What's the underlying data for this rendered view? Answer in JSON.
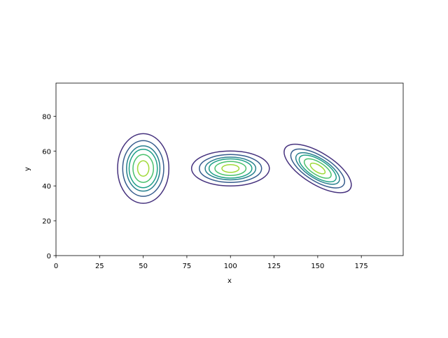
{
  "chart_data": {
    "type": "contour",
    "xlabel": "x",
    "ylabel": "y",
    "xlim": [
      0,
      199
    ],
    "ylim": [
      0,
      99
    ],
    "xticks": [
      0,
      25,
      50,
      75,
      100,
      125,
      150,
      175
    ],
    "yticks": [
      0,
      20,
      40,
      60,
      80
    ],
    "level_colors": [
      "#46327e",
      "#365c8d",
      "#277f8e",
      "#1fa187",
      "#4ac16d",
      "#a0da39"
    ],
    "level_scales": [
      1,
      0.8,
      0.65,
      0.55,
      0.4,
      0.22
    ],
    "blobs": [
      {
        "cx": 50,
        "cy": 50,
        "rx": 14.7,
        "ry": 20,
        "angle": 0
      },
      {
        "cx": 100,
        "cy": 50,
        "rx": 22.3,
        "ry": 10,
        "angle": 0
      },
      {
        "cx": 150,
        "cy": 50,
        "rx": 22,
        "ry": 9,
        "angle": -32
      }
    ]
  }
}
